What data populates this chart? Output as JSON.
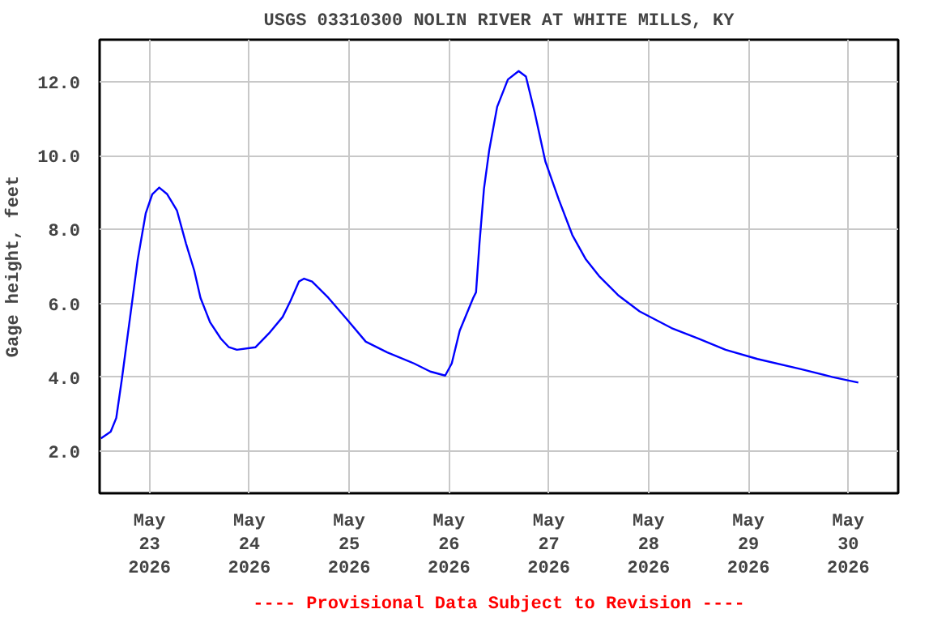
{
  "chart_data": {
    "type": "line",
    "title": "USGS 03310300 NOLIN RIVER AT WHITE MILLS, KY",
    "ylabel": "Gage height, feet",
    "x": [
      "2026-05-22T12:20",
      "2026-05-22T14:40",
      "2026-05-22T16:00",
      "2026-05-22T17:20",
      "2026-05-22T19:15",
      "2026-05-22T21:10",
      "2026-05-22T23:05",
      "2026-05-23T00:40",
      "2026-05-23T02:20",
      "2026-05-23T04:15",
      "2026-05-23T06:35",
      "2026-05-23T08:45",
      "2026-05-23T10:45",
      "2026-05-23T12:15",
      "2026-05-23T14:35",
      "2026-05-23T17:10",
      "2026-05-23T19:05",
      "2026-05-23T21:00",
      "2026-05-24T01:30",
      "2026-05-24T04:45",
      "2026-05-24T08:00",
      "2026-05-24T09:55",
      "2026-05-24T11:55",
      "2026-05-24T13:10",
      "2026-05-24T15:05",
      "2026-05-24T19:00",
      "2026-05-24T23:30",
      "2026-05-25T04:00",
      "2026-05-25T09:10",
      "2026-05-25T15:35",
      "2026-05-25T19:30",
      "2026-05-25T23:05",
      "2026-05-26T00:40",
      "2026-05-26T02:35",
      "2026-05-26T05:50",
      "2026-05-26T06:30",
      "2026-05-26T07:20",
      "2026-05-26T08:25",
      "2026-05-26T09:40",
      "2026-05-26T11:35",
      "2026-05-26T14:10",
      "2026-05-26T16:45",
      "2026-05-26T18:30",
      "2026-05-26T20:35",
      "2026-05-26T23:10",
      "2026-05-27T02:25",
      "2026-05-27T05:40",
      "2026-05-27T08:55",
      "2026-05-27T12:05",
      "2026-05-27T16:40",
      "2026-05-27T21:50",
      "2026-05-28T05:30",
      "2026-05-28T12:00",
      "2026-05-28T18:30",
      "2026-05-29T02:10",
      "2026-05-29T12:30",
      "2026-05-29T20:15",
      "2026-05-30T02:25"
    ],
    "series": [
      {
        "color": "#0000ff",
        "values": [
          2.34,
          2.52,
          2.89,
          3.93,
          5.56,
          7.19,
          8.44,
          8.96,
          9.14,
          8.96,
          8.52,
          7.63,
          6.89,
          6.15,
          5.48,
          5.04,
          4.81,
          4.74,
          4.81,
          5.19,
          5.63,
          6.07,
          6.59,
          6.67,
          6.59,
          6.15,
          5.56,
          4.96,
          4.67,
          4.37,
          4.15,
          4.04,
          4.37,
          5.26,
          6.15,
          6.3,
          7.63,
          9.11,
          10.15,
          11.33,
          12.07,
          12.3,
          12.15,
          11.19,
          9.85,
          8.81,
          7.85,
          7.19,
          6.74,
          6.22,
          5.78,
          5.33,
          5.04,
          4.74,
          4.49,
          4.22,
          4.0,
          3.85
        ]
      }
    ],
    "xlim": [
      "2026-05-22T12:00",
      "2026-05-30T12:00"
    ],
    "xticks": [
      {
        "value": "2026-05-23",
        "label": "May\n23\n2026"
      },
      {
        "value": "2026-05-24",
        "label": "May\n24\n2026"
      },
      {
        "value": "2026-05-25",
        "label": "May\n25\n2026"
      },
      {
        "value": "2026-05-26",
        "label": "May\n26\n2026"
      },
      {
        "value": "2026-05-27",
        "label": "May\n27\n2026"
      },
      {
        "value": "2026-05-28",
        "label": "May\n28\n2026"
      },
      {
        "value": "2026-05-29",
        "label": "May\n29\n2026"
      },
      {
        "value": "2026-05-30",
        "label": "May\n30\n2026"
      }
    ],
    "ylim": [
      0.85,
      13.15
    ],
    "yticks": [
      {
        "value": 2,
        "label": "2.0"
      },
      {
        "value": 4,
        "label": "4.0"
      },
      {
        "value": 6,
        "label": "6.0"
      },
      {
        "value": 8,
        "label": "8.0"
      },
      {
        "value": 10,
        "label": "10.0"
      },
      {
        "value": 12,
        "label": "12.0"
      }
    ],
    "grid": true,
    "line_style": "solid",
    "marker": "none",
    "annotations": [
      "---- Provisional Data Subject to Revision ----"
    ]
  }
}
